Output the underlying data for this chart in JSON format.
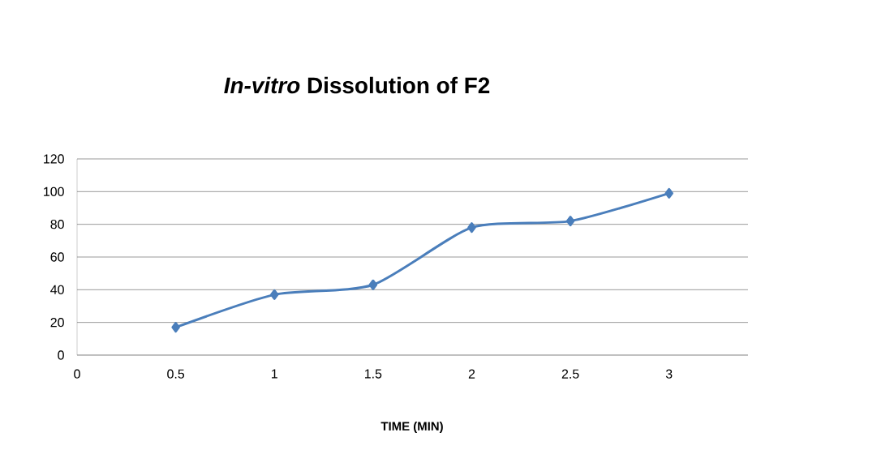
{
  "chart_data": {
    "type": "line",
    "title": "*In-vitro* Dissolution of F2",
    "xlabel": "TIME (MIN)",
    "x": [
      0.5,
      1,
      1.5,
      2,
      2.5,
      3
    ],
    "series": [
      {
        "color": "#4a7ebb",
        "values": [
          17,
          37,
          43,
          78,
          82,
          99
        ]
      }
    ],
    "xlim": [
      0,
      3.4
    ],
    "xticks": [
      0,
      0.5,
      1,
      1.5,
      2,
      2.5,
      3
    ],
    "ylim": [
      0,
      120
    ],
    "yticks": [
      0,
      20,
      40,
      60,
      80,
      100,
      120
    ],
    "grid": "y",
    "marker": "diamond",
    "line_style": "solid"
  }
}
